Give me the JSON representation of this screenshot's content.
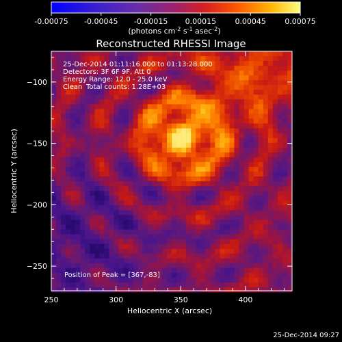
{
  "chart_data": {
    "type": "heatmap",
    "title": "Reconstructed RHESSI Image",
    "xlabel": "Heliocentric X (arcsec)",
    "ylabel": "Heliocentric Y (arcsec)",
    "xlim": [
      250,
      436
    ],
    "ylim": [
      -270,
      -75
    ],
    "xticks": [
      250,
      300,
      350,
      400
    ],
    "yticks": [
      -250,
      -200,
      -150,
      -100
    ],
    "colorbar": {
      "min": -0.00075,
      "max": 0.00075,
      "ticks": [
        "-0.00075",
        "-0.00045",
        "-0.00015",
        "0.00015",
        "0.00045",
        "0.00075"
      ],
      "unit_prefix": "(photons cm",
      "unit_exp1": "-2",
      "unit_mid": " s",
      "unit_exp2": "-1",
      "unit_mid2": " asec",
      "unit_exp3": "-2",
      "unit_suffix": ")"
    },
    "annotations": {
      "time_range": "25-Dec-2014 01:11:16.000 to 01:13:28.000",
      "detectors": "Detectors: 3F 6F 9F, Att 0",
      "energy": "Energy Range: 12.0 - 25.0 keV",
      "method": "Clean",
      "counts": "Total counts: 1.28E+03",
      "peak": "Position of Peak = [367,-83]"
    },
    "peak": [
      367,
      -83
    ],
    "source_center": [
      352,
      -145
    ],
    "source_center2": [
      405,
      -95
    ],
    "grid": false
  },
  "footer": {
    "timestamp": "25-Dec-2014 09:27"
  },
  "colors": {
    "background": "#000000",
    "axes": "#ffffff"
  }
}
